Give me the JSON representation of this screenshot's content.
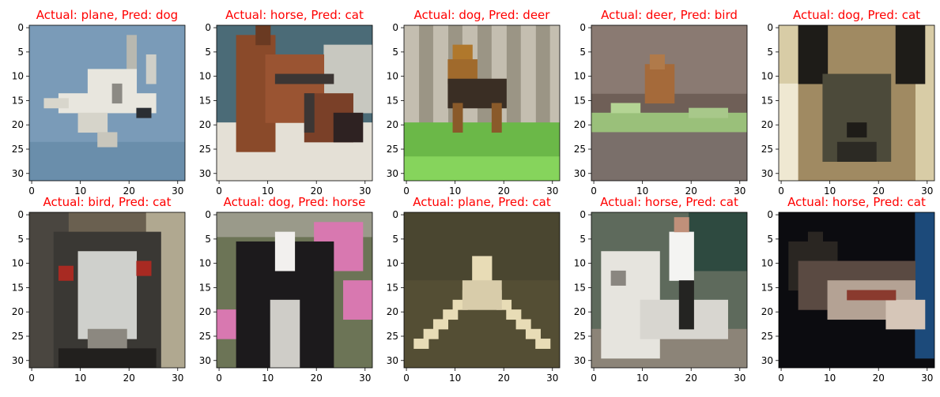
{
  "figure": {
    "title_color": "#ff0000",
    "rows": 2,
    "cols": 5,
    "x_ticks": [
      0,
      10,
      20,
      30
    ],
    "y_ticks": [
      0,
      5,
      10,
      15,
      20,
      25,
      30
    ],
    "image_size": 32
  },
  "panels": [
    {
      "title": "Actual: plane, Pred: dog",
      "actual": "plane",
      "pred": "dog",
      "scene": "plane_sky",
      "colors": {
        "bg": "#7a9bb8",
        "mid": "#93aec4",
        "subject": "#e8e6de",
        "accent": "#2a2e33",
        "ground": "#6a8eab"
      }
    },
    {
      "title": "Actual: horse, Pred: cat",
      "actual": "horse",
      "pred": "cat",
      "scene": "horse_head",
      "colors": {
        "bg": "#4b6b77",
        "mid": "#c8c8c0",
        "subject": "#8a4a2a",
        "accent": "#2e2222",
        "ground": "#e4e0d6"
      }
    },
    {
      "title": "Actual: dog, Pred: deer",
      "actual": "dog",
      "pred": "deer",
      "scene": "dog_yard",
      "colors": {
        "bg": "#9b9585",
        "mid": "#c4beb0",
        "subject": "#3a2e24",
        "accent": "#b0782c",
        "ground": "#6bb848"
      }
    },
    {
      "title": "Actual: deer, Pred: bird",
      "actual": "deer",
      "pred": "bird",
      "scene": "deer_field",
      "colors": {
        "bg": "#6f5f57",
        "mid": "#8a7a72",
        "subject": "#a56a3a",
        "accent": "#9ac07a",
        "ground": "#7a6f6a"
      }
    },
    {
      "title": "Actual: dog, Pred: cat",
      "actual": "dog",
      "pred": "cat",
      "scene": "dog_face",
      "colors": {
        "bg": "#d8cca6",
        "mid": "#a08a62",
        "subject": "#4c4a3a",
        "accent": "#1e1c18",
        "ground": "#efe8d2"
      }
    },
    {
      "title": "Actual: bird, Pred: cat",
      "actual": "bird",
      "pred": "cat",
      "scene": "emu_face",
      "colors": {
        "bg": "#6a6050",
        "mid": "#3a3834",
        "subject": "#cfd0cc",
        "accent": "#a82a22",
        "ground": "#22201e"
      }
    },
    {
      "title": "Actual: dog, Pred: horse",
      "actual": "dog",
      "pred": "horse",
      "scene": "dog_flowers",
      "colors": {
        "bg": "#6c7456",
        "mid": "#d878b0",
        "subject": "#1c1a1c",
        "accent": "#f2f0ee",
        "ground": "#9a9a8a"
      }
    },
    {
      "title": "Actual: plane, Pred: cat",
      "actual": "plane",
      "pred": "cat",
      "scene": "plane_ground",
      "colors": {
        "bg": "#4a4630",
        "mid": "#5c563a",
        "subject": "#e8dcb6",
        "accent": "#3a3626",
        "ground": "#544e34"
      }
    },
    {
      "title": "Actual: horse, Pred: cat",
      "actual": "horse",
      "pred": "cat",
      "scene": "horse_rider",
      "colors": {
        "bg": "#2e4a40",
        "mid": "#5e6a5c",
        "subject": "#e6e4de",
        "accent": "#242422",
        "ground": "#8c8478"
      }
    },
    {
      "title": "Actual: horse, Pred: cat",
      "actual": "horse",
      "pred": "cat",
      "scene": "horse_dark",
      "colors": {
        "bg": "#0c0c10",
        "mid": "#2a2622",
        "subject": "#b4a294",
        "accent": "#1c4a7a",
        "ground": "#5a4a42"
      }
    }
  ]
}
